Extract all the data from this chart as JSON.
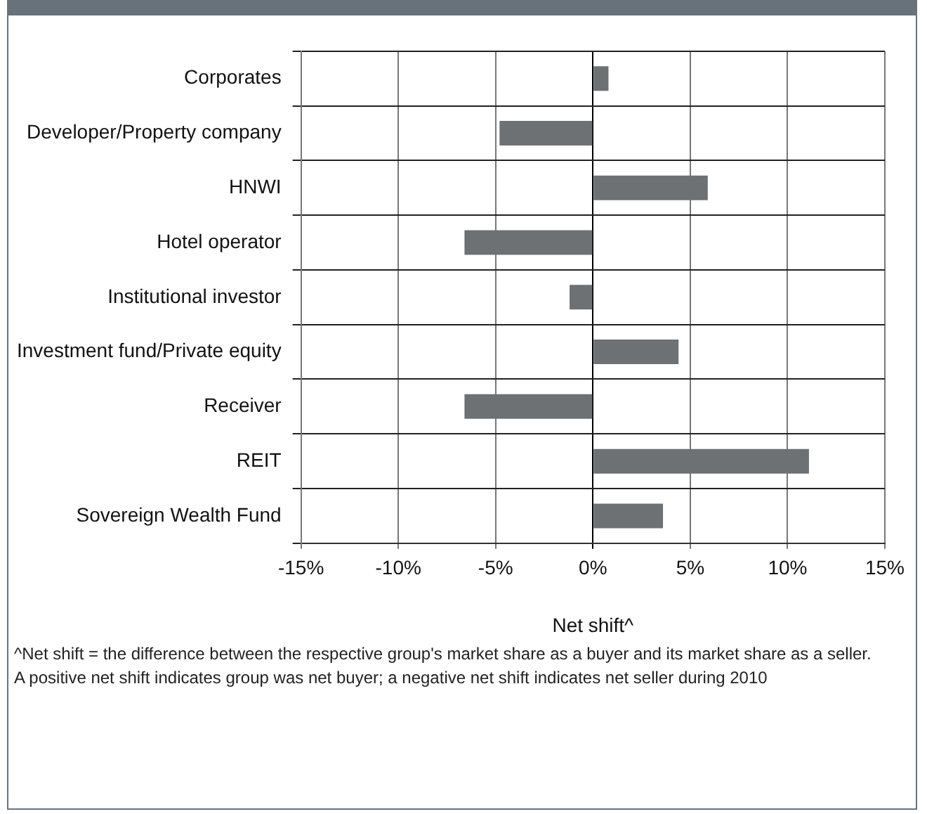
{
  "chart_data": {
    "type": "bar",
    "orientation": "horizontal",
    "categories": [
      "Corporates",
      "Developer/Property company",
      "HNWI",
      "Hotel operator",
      "Institutional investor",
      "Investment fund/Private equity",
      "Receiver",
      "REIT",
      "Sovereign Wealth Fund"
    ],
    "values": [
      0.8,
      -4.8,
      5.9,
      -6.6,
      -1.2,
      4.4,
      -6.6,
      11.1,
      3.6
    ],
    "color": "#6d7174",
    "xlim": [
      -15,
      15
    ],
    "xticks": [
      {
        "value": -15,
        "label": "-15%"
      },
      {
        "value": -10,
        "label": "-10%"
      },
      {
        "value": -5,
        "label": "-5%"
      },
      {
        "value": 0,
        "label": "0%"
      },
      {
        "value": 5,
        "label": "5%"
      },
      {
        "value": 10,
        "label": "10%"
      },
      {
        "value": 15,
        "label": "15%"
      }
    ],
    "xlabel": "Net shift^",
    "grid": true,
    "legend": false,
    "annotations": [
      "^Net shift = the difference between the respective group's market share as a buyer and its market share as a seller.",
      "A positive net shift indicates group was net buyer; a negative net shift indicates net seller during 2010"
    ]
  }
}
